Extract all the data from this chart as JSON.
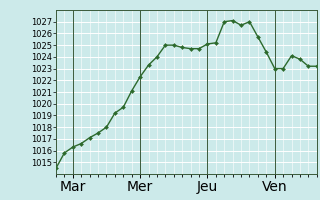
{
  "x_values": [
    0,
    1,
    2,
    3,
    4,
    5,
    6,
    7,
    8,
    9,
    10,
    11,
    12,
    13,
    14,
    15,
    16,
    17,
    18,
    19,
    20,
    21,
    22,
    23,
    24,
    25,
    26,
    27,
    28,
    29,
    30,
    31
  ],
  "y_values": [
    1014.5,
    1015.8,
    1016.3,
    1016.6,
    1017.1,
    1017.5,
    1018.0,
    1019.2,
    1019.7,
    1021.1,
    1022.3,
    1023.3,
    1024.0,
    1025.0,
    1025.0,
    1024.8,
    1024.7,
    1024.7,
    1025.1,
    1025.2,
    1027.0,
    1027.1,
    1026.7,
    1027.0,
    1025.7,
    1024.4,
    1023.0,
    1023.0,
    1024.1,
    1023.8,
    1023.2,
    1023.2
  ],
  "x_tick_positions": [
    2,
    10,
    18,
    26
  ],
  "x_tick_labels": [
    "Mar",
    "Mer",
    "Jeu",
    "Ven"
  ],
  "x_vlines": [
    2,
    10,
    18,
    26
  ],
  "ylim": [
    1014,
    1028
  ],
  "yticks": [
    1015,
    1016,
    1017,
    1018,
    1019,
    1020,
    1021,
    1022,
    1023,
    1024,
    1025,
    1026,
    1027
  ],
  "line_color": "#2d6a2d",
  "marker_color": "#2d6a2d",
  "bg_color": "#cceaea",
  "grid_color": "#ffffff",
  "vline_color": "#3a5a3a",
  "markersize": 2.0,
  "linewidth": 1.0,
  "tick_fontsize": 6.0
}
